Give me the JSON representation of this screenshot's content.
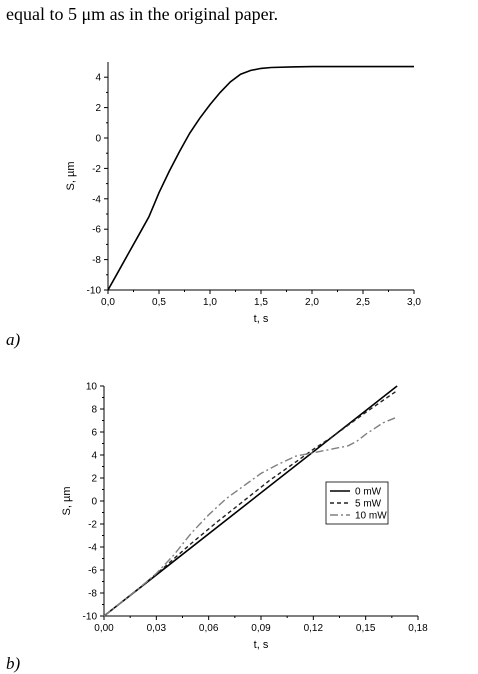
{
  "caption_text": "equal to 5 μm as in the original paper.",
  "panels": {
    "a": {
      "label": "a)"
    },
    "b": {
      "label": "b)"
    }
  },
  "chart_data": [
    {
      "type": "line",
      "panel": "a",
      "xlabel": "t, s",
      "ylabel": "S, µm",
      "xlim": [
        0,
        3
      ],
      "ylim": [
        -10,
        5
      ],
      "xticks": [
        "0,0",
        "0,5",
        "1,0",
        "1,5",
        "2,0",
        "2,5",
        "3,0"
      ],
      "yticks": [
        "-10",
        "-8",
        "-6",
        "-4",
        "-2",
        "0",
        "2",
        "4"
      ],
      "series": [
        {
          "color": "#000000",
          "dash": "solid",
          "x": [
            0,
            0.1,
            0.2,
            0.3,
            0.4,
            0.45,
            0.5,
            0.6,
            0.7,
            0.8,
            0.9,
            1.0,
            1.1,
            1.2,
            1.3,
            1.4,
            1.5,
            1.6,
            1.8,
            2.0,
            2.2,
            2.5,
            2.8,
            3.0
          ],
          "y": [
            -10,
            -8.8,
            -7.6,
            -6.4,
            -5.2,
            -4.4,
            -3.6,
            -2.2,
            -0.9,
            0.3,
            1.3,
            2.2,
            3.0,
            3.7,
            4.2,
            4.45,
            4.58,
            4.64,
            4.68,
            4.7,
            4.7,
            4.7,
            4.7,
            4.7
          ]
        }
      ]
    },
    {
      "type": "line",
      "panel": "b",
      "xlabel": "t, s",
      "ylabel": "S, µm",
      "xlim": [
        0,
        0.18
      ],
      "ylim": [
        -10,
        10
      ],
      "xticks": [
        "0,00",
        "0,03",
        "0,06",
        "0,09",
        "0,12",
        "0,15",
        "0,18"
      ],
      "yticks": [
        "-10",
        "-8",
        "-6",
        "-4",
        "-2",
        "0",
        "2",
        "4",
        "6",
        "8",
        "10"
      ],
      "legend_position": "right",
      "series": [
        {
          "name": "0 mW",
          "color": "#000000",
          "dash": "solid",
          "x": [
            0,
            0.168
          ],
          "y": [
            -10,
            10
          ]
        },
        {
          "name": "5 mW",
          "color": "#222222",
          "dash": "dash",
          "x": [
            0,
            0.02,
            0.035,
            0.05,
            0.065,
            0.08,
            0.095,
            0.11,
            0.12,
            0.13,
            0.14,
            0.15,
            0.168
          ],
          "y": [
            -10,
            -7.6,
            -5.7,
            -3.7,
            -1.8,
            0,
            1.8,
            3.4,
            4.5,
            5.5,
            6.6,
            7.7,
            9.6
          ]
        },
        {
          "name": "10 mW",
          "color": "#808080",
          "dash": "dashdot",
          "x": [
            0,
            0.02,
            0.03,
            0.04,
            0.05,
            0.06,
            0.07,
            0.08,
            0.09,
            0.1,
            0.11,
            0.12,
            0.13,
            0.14,
            0.145,
            0.15,
            0.16,
            0.168
          ],
          "y": [
            -10,
            -7.6,
            -6.3,
            -4.7,
            -2.8,
            -1.2,
            0.2,
            1.3,
            2.4,
            3.2,
            3.9,
            4.2,
            4.5,
            4.8,
            5.2,
            5.8,
            6.8,
            7.3
          ]
        }
      ]
    }
  ]
}
